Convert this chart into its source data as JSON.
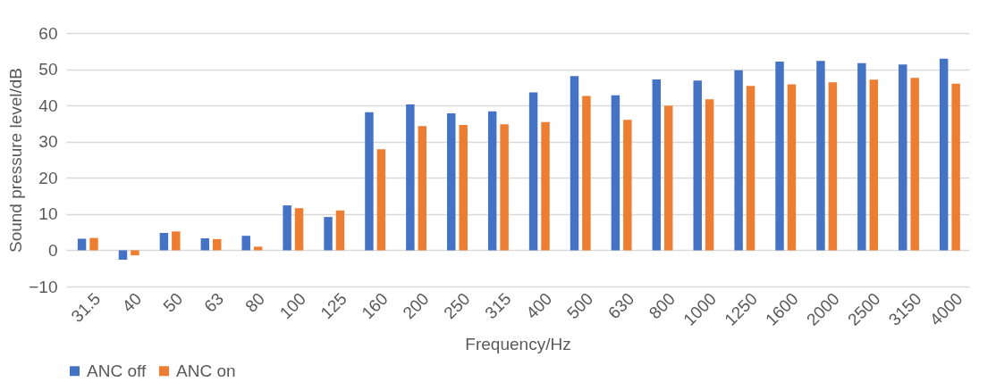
{
  "chart_data": {
    "type": "bar",
    "xlabel": "Frequency/Hz",
    "ylabel": "Sound pressure level/dB",
    "categories": [
      "31.5",
      "40",
      "50",
      "63",
      "80",
      "100",
      "125",
      "160",
      "200",
      "250",
      "315",
      "400",
      "500",
      "630",
      "800",
      "1000",
      "1250",
      "1600",
      "2000",
      "2500",
      "3150",
      "4000"
    ],
    "series": [
      {
        "name": "ANC off",
        "color": "#4472c4",
        "values": [
          3.2,
          -2.6,
          4.8,
          3.3,
          4.0,
          12.4,
          9.2,
          38.1,
          40.3,
          37.8,
          38.4,
          43.6,
          48.1,
          42.8,
          47.2,
          46.9,
          49.7,
          52.1,
          52.3,
          51.7,
          51.3,
          52.9
        ]
      },
      {
        "name": "ANC on",
        "color": "#ed7d31",
        "values": [
          3.4,
          -1.4,
          5.2,
          3.1,
          1.0,
          11.6,
          11.0,
          27.9,
          34.3,
          34.6,
          34.8,
          35.4,
          42.6,
          36.0,
          39.9,
          41.7,
          45.4,
          45.8,
          46.4,
          47.1,
          47.6,
          46.0
        ]
      }
    ],
    "ylim": [
      -10,
      60
    ],
    "yticks": [
      -10,
      0,
      10,
      20,
      30,
      40,
      50,
      60
    ],
    "grid": "y",
    "legend": "bottom"
  }
}
